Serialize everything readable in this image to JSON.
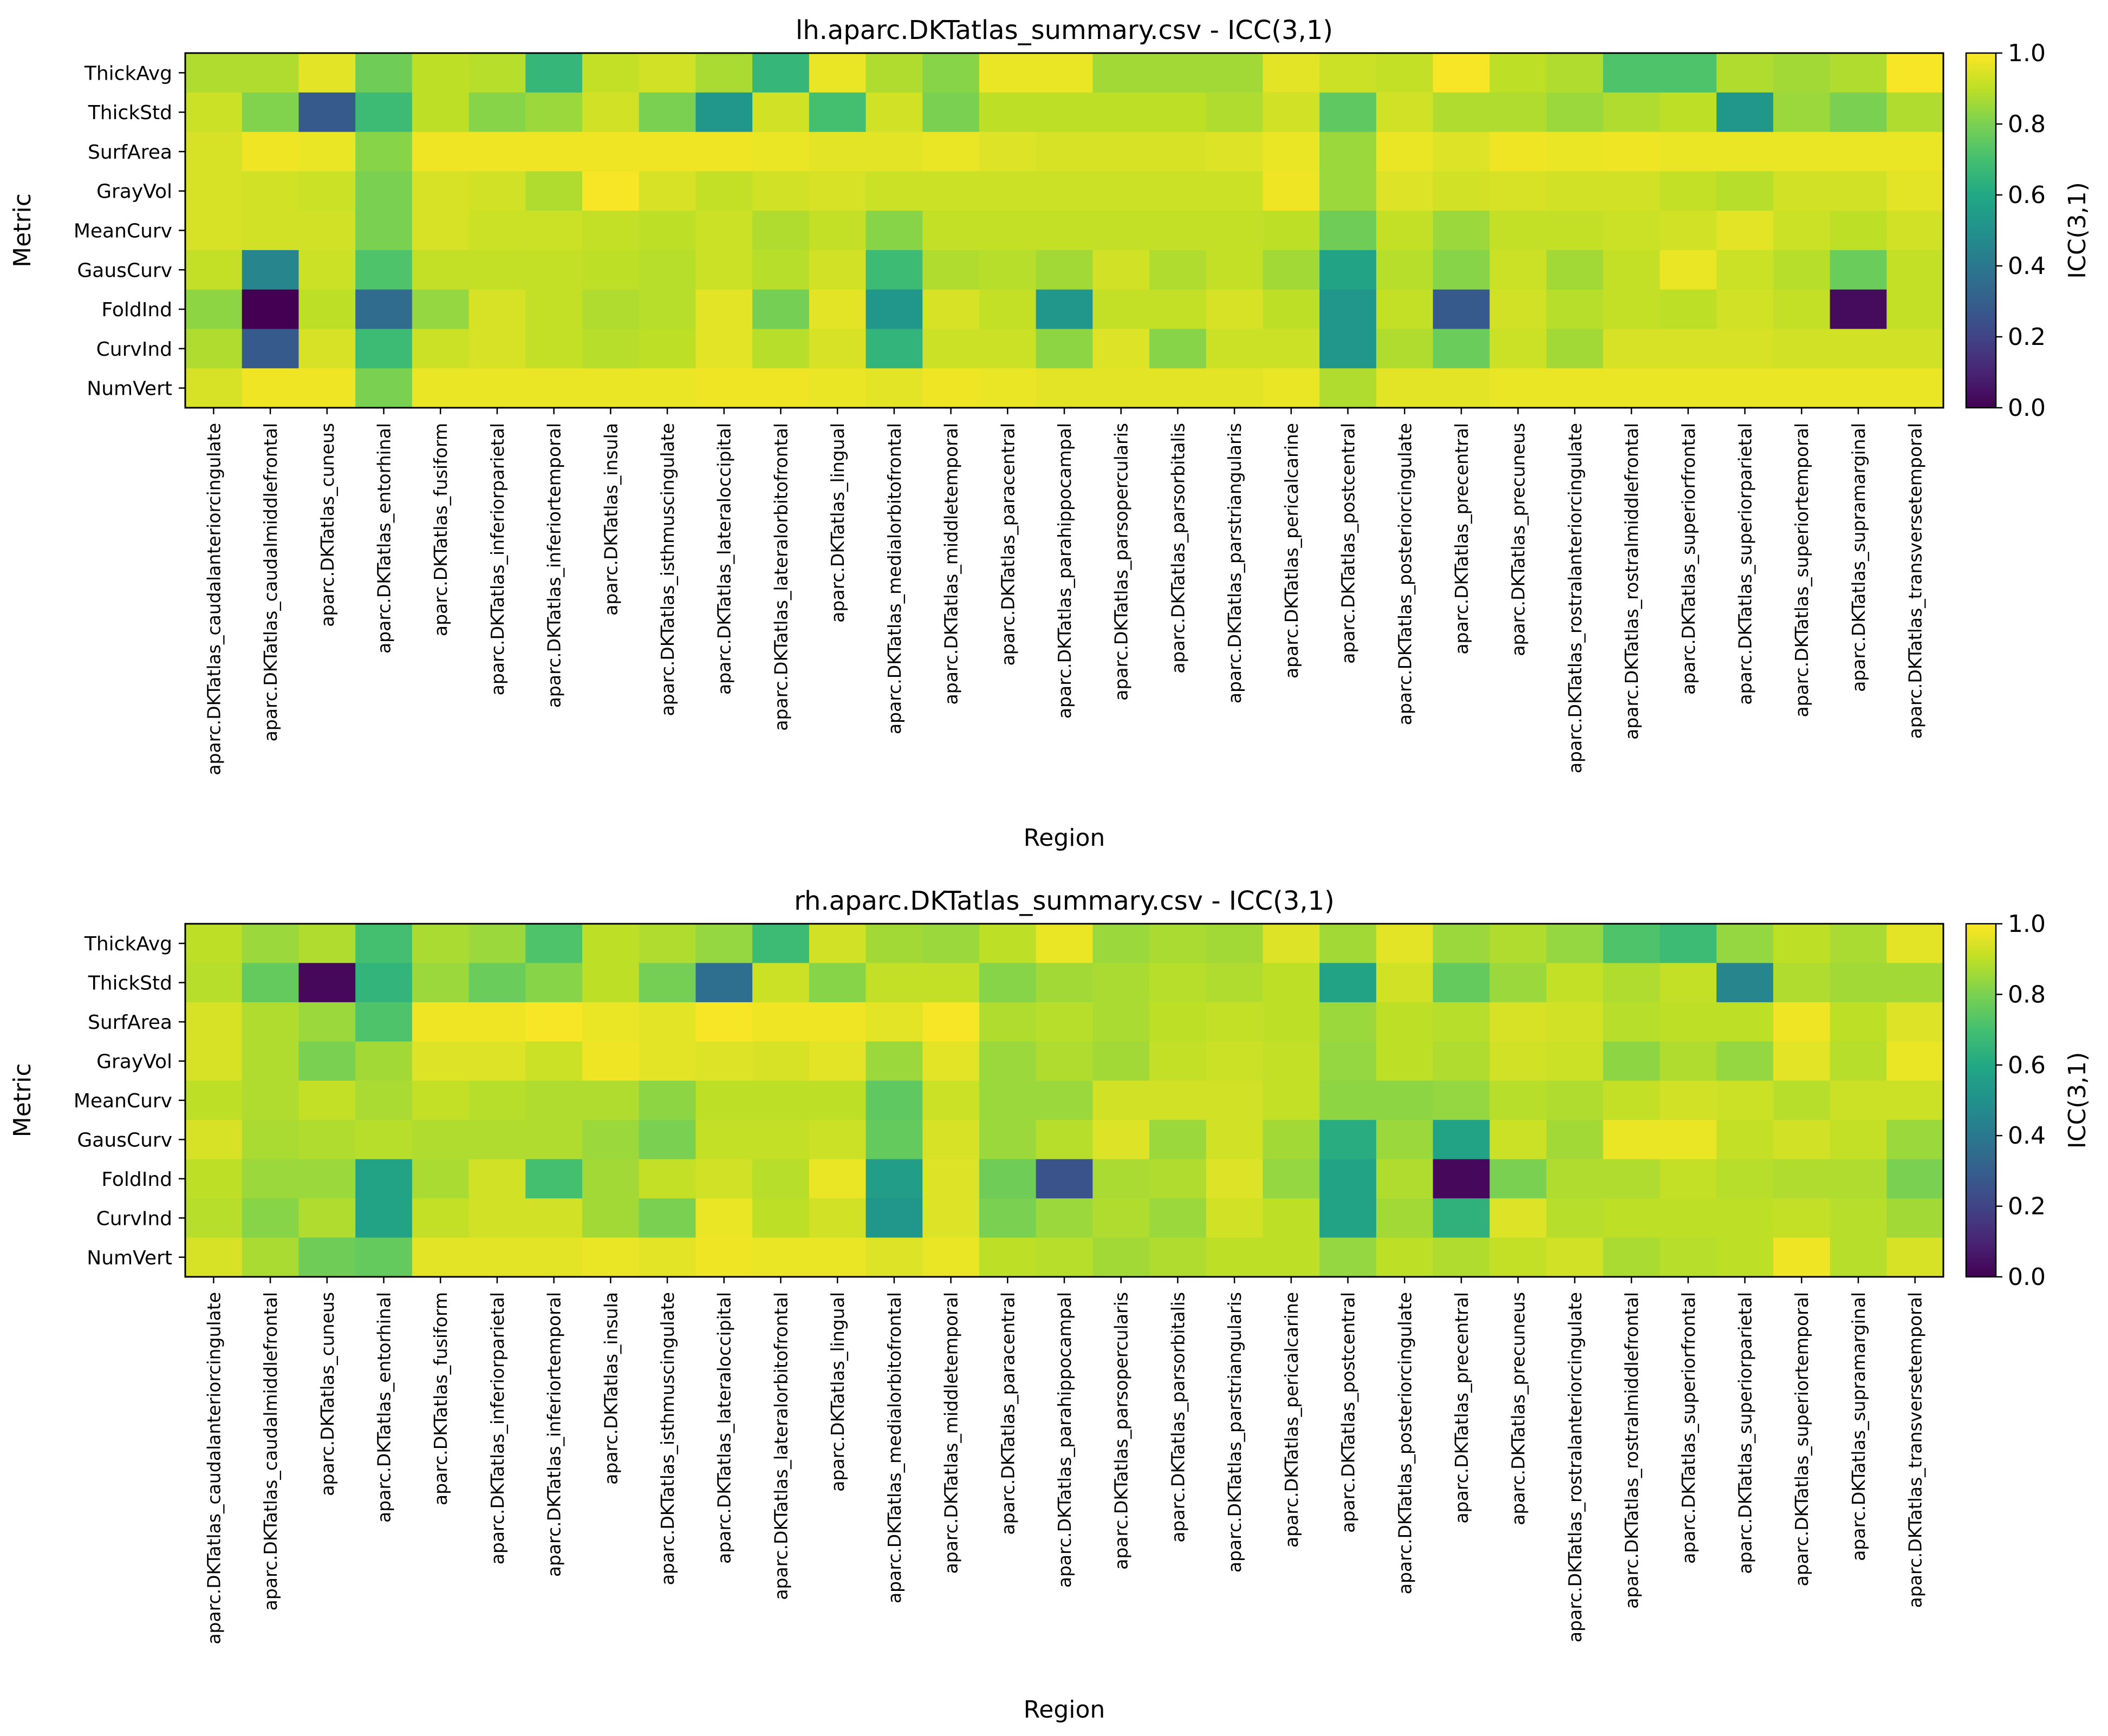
{
  "chart_data": [
    {
      "type": "heatmap",
      "title": "lh.aparc.DKTatlas_summary.csv - ICC(3,1)",
      "xlabel": "Region",
      "ylabel": "Metric",
      "colorbar_label": "ICC(3,1)",
      "colorbar_ticks": [
        "0.0",
        "0.2",
        "0.4",
        "0.6",
        "0.8",
        "1.0"
      ],
      "value_range": [
        0,
        1
      ],
      "colormap": "viridis",
      "metrics": [
        "ThickAvg",
        "ThickStd",
        "SurfArea",
        "GrayVol",
        "MeanCurv",
        "GausCurv",
        "FoldInd",
        "CurvInd",
        "NumVert"
      ],
      "regions": [
        "aparc.DKTatlas_caudalanteriorcingulate",
        "aparc.DKTatlas_caudalmiddlefrontal",
        "aparc.DKTatlas_cuneus",
        "aparc.DKTatlas_entorhinal",
        "aparc.DKTatlas_fusiform",
        "aparc.DKTatlas_inferiorparietal",
        "aparc.DKTatlas_inferiortemporal",
        "aparc.DKTatlas_insula",
        "aparc.DKTatlas_isthmuscingulate",
        "aparc.DKTatlas_lateraloccipital",
        "aparc.DKTatlas_lateralorbitofrontal",
        "aparc.DKTatlas_lingual",
        "aparc.DKTatlas_medialorbitofrontal",
        "aparc.DKTatlas_middletemporal",
        "aparc.DKTatlas_paracentral",
        "aparc.DKTatlas_parahippocampal",
        "aparc.DKTatlas_parsopercularis",
        "aparc.DKTatlas_parsorbitalis",
        "aparc.DKTatlas_parstriangularis",
        "aparc.DKTatlas_pericalcarine",
        "aparc.DKTatlas_postcentral",
        "aparc.DKTatlas_posteriorcingulate",
        "aparc.DKTatlas_precentral",
        "aparc.DKTatlas_precuneus",
        "aparc.DKTatlas_rostralanteriorcingulate",
        "aparc.DKTatlas_rostralmiddlefrontal",
        "aparc.DKTatlas_superiorfrontal",
        "aparc.DKTatlas_superiorparietal",
        "aparc.DKTatlas_superiortemporal",
        "aparc.DKTatlas_supramarginal",
        "aparc.DKTatlas_transversetemporal"
      ],
      "values": [
        [
          0.88,
          0.88,
          0.96,
          0.78,
          0.9,
          0.89,
          0.66,
          0.91,
          0.93,
          0.87,
          0.66,
          0.97,
          0.88,
          0.82,
          0.97,
          0.97,
          0.86,
          0.86,
          0.86,
          0.96,
          0.92,
          0.91,
          0.99,
          0.9,
          0.88,
          0.72,
          0.72,
          0.88,
          0.86,
          0.88,
          0.99
        ],
        [
          0.92,
          0.81,
          0.28,
          0.68,
          0.9,
          0.82,
          0.85,
          0.93,
          0.8,
          0.52,
          0.93,
          0.7,
          0.93,
          0.8,
          0.9,
          0.9,
          0.9,
          0.9,
          0.88,
          0.93,
          0.75,
          0.93,
          0.88,
          0.88,
          0.85,
          0.88,
          0.9,
          0.52,
          0.85,
          0.8,
          0.88
        ],
        [
          0.94,
          0.98,
          0.97,
          0.82,
          0.98,
          0.98,
          0.98,
          0.98,
          0.98,
          0.98,
          0.97,
          0.96,
          0.96,
          0.97,
          0.95,
          0.94,
          0.94,
          0.94,
          0.95,
          0.97,
          0.85,
          0.97,
          0.95,
          0.98,
          0.97,
          0.98,
          0.97,
          0.97,
          0.97,
          0.97,
          0.97
        ],
        [
          0.94,
          0.93,
          0.92,
          0.8,
          0.94,
          0.93,
          0.88,
          0.99,
          0.94,
          0.91,
          0.93,
          0.94,
          0.92,
          0.92,
          0.92,
          0.92,
          0.92,
          0.92,
          0.92,
          0.98,
          0.85,
          0.95,
          0.93,
          0.94,
          0.93,
          0.93,
          0.91,
          0.89,
          0.93,
          0.93,
          0.96
        ],
        [
          0.94,
          0.93,
          0.93,
          0.8,
          0.94,
          0.92,
          0.92,
          0.91,
          0.9,
          0.92,
          0.88,
          0.91,
          0.82,
          0.91,
          0.91,
          0.91,
          0.91,
          0.91,
          0.91,
          0.9,
          0.78,
          0.91,
          0.85,
          0.91,
          0.91,
          0.92,
          0.93,
          0.96,
          0.92,
          0.9,
          0.93
        ],
        [
          0.91,
          0.45,
          0.92,
          0.72,
          0.91,
          0.91,
          0.91,
          0.9,
          0.89,
          0.92,
          0.89,
          0.93,
          0.68,
          0.88,
          0.89,
          0.86,
          0.93,
          0.88,
          0.91,
          0.86,
          0.58,
          0.89,
          0.82,
          0.92,
          0.86,
          0.91,
          0.97,
          0.92,
          0.89,
          0.77,
          0.91
        ],
        [
          0.83,
          0.0,
          0.9,
          0.35,
          0.84,
          0.94,
          0.91,
          0.88,
          0.89,
          0.96,
          0.79,
          0.96,
          0.52,
          0.94,
          0.91,
          0.52,
          0.91,
          0.91,
          0.94,
          0.9,
          0.52,
          0.91,
          0.28,
          0.93,
          0.89,
          0.91,
          0.9,
          0.93,
          0.91,
          0.03,
          0.91
        ],
        [
          0.88,
          0.28,
          0.94,
          0.68,
          0.92,
          0.94,
          0.91,
          0.89,
          0.9,
          0.96,
          0.89,
          0.94,
          0.65,
          0.92,
          0.92,
          0.83,
          0.95,
          0.82,
          0.92,
          0.92,
          0.52,
          0.88,
          0.77,
          0.92,
          0.86,
          0.94,
          0.94,
          0.94,
          0.93,
          0.93,
          0.93
        ],
        [
          0.94,
          0.98,
          0.98,
          0.8,
          0.97,
          0.97,
          0.97,
          0.97,
          0.97,
          0.98,
          0.98,
          0.97,
          0.96,
          0.98,
          0.97,
          0.96,
          0.96,
          0.96,
          0.96,
          0.97,
          0.88,
          0.96,
          0.96,
          0.97,
          0.97,
          0.97,
          0.97,
          0.97,
          0.97,
          0.97,
          0.97
        ]
      ]
    },
    {
      "type": "heatmap",
      "title": "rh.aparc.DKTatlas_summary.csv - ICC(3,1)",
      "xlabel": "Region",
      "ylabel": "Metric",
      "colorbar_label": "ICC(3,1)",
      "colorbar_ticks": [
        "0.0",
        "0.2",
        "0.4",
        "0.6",
        "0.8",
        "1.0"
      ],
      "value_range": [
        0,
        1
      ],
      "colormap": "viridis",
      "metrics": [
        "ThickAvg",
        "ThickStd",
        "SurfArea",
        "GrayVol",
        "MeanCurv",
        "GausCurv",
        "FoldInd",
        "CurvInd",
        "NumVert"
      ],
      "regions": [
        "aparc.DKTatlas_caudalanteriorcingulate",
        "aparc.DKTatlas_caudalmiddlefrontal",
        "aparc.DKTatlas_cuneus",
        "aparc.DKTatlas_entorhinal",
        "aparc.DKTatlas_fusiform",
        "aparc.DKTatlas_inferiorparietal",
        "aparc.DKTatlas_inferiortemporal",
        "aparc.DKTatlas_insula",
        "aparc.DKTatlas_isthmuscingulate",
        "aparc.DKTatlas_lateraloccipital",
        "aparc.DKTatlas_lateralorbitofrontal",
        "aparc.DKTatlas_lingual",
        "aparc.DKTatlas_medialorbitofrontal",
        "aparc.DKTatlas_middletemporal",
        "aparc.DKTatlas_paracentral",
        "aparc.DKTatlas_parahippocampal",
        "aparc.DKTatlas_parsopercularis",
        "aparc.DKTatlas_parsorbitalis",
        "aparc.DKTatlas_parstriangularis",
        "aparc.DKTatlas_pericalcarine",
        "aparc.DKTatlas_postcentral",
        "aparc.DKTatlas_posteriorcingulate",
        "aparc.DKTatlas_precentral",
        "aparc.DKTatlas_precuneus",
        "aparc.DKTatlas_rostralanteriorcingulate",
        "aparc.DKTatlas_rostralmiddlefrontal",
        "aparc.DKTatlas_superiorfrontal",
        "aparc.DKTatlas_superiorparietal",
        "aparc.DKTatlas_superiortemporal",
        "aparc.DKTatlas_supramarginal",
        "aparc.DKTatlas_transversetemporal"
      ],
      "values": [
        [
          0.9,
          0.85,
          0.88,
          0.7,
          0.87,
          0.85,
          0.72,
          0.9,
          0.88,
          0.84,
          0.68,
          0.93,
          0.86,
          0.85,
          0.9,
          0.97,
          0.85,
          0.87,
          0.86,
          0.95,
          0.86,
          0.96,
          0.85,
          0.88,
          0.84,
          0.72,
          0.68,
          0.84,
          0.9,
          0.87,
          0.96
        ],
        [
          0.89,
          0.76,
          0.02,
          0.65,
          0.85,
          0.77,
          0.82,
          0.9,
          0.79,
          0.36,
          0.92,
          0.82,
          0.91,
          0.91,
          0.82,
          0.86,
          0.87,
          0.89,
          0.88,
          0.9,
          0.58,
          0.93,
          0.76,
          0.85,
          0.91,
          0.88,
          0.91,
          0.45,
          0.88,
          0.86,
          0.86
        ],
        [
          0.94,
          0.88,
          0.85,
          0.72,
          0.98,
          0.98,
          0.99,
          0.97,
          0.96,
          0.99,
          0.98,
          0.98,
          0.96,
          0.99,
          0.88,
          0.89,
          0.87,
          0.9,
          0.91,
          0.9,
          0.85,
          0.9,
          0.89,
          0.94,
          0.93,
          0.89,
          0.9,
          0.9,
          0.98,
          0.9,
          0.95
        ],
        [
          0.94,
          0.88,
          0.8,
          0.86,
          0.95,
          0.95,
          0.92,
          0.98,
          0.96,
          0.95,
          0.94,
          0.96,
          0.85,
          0.96,
          0.85,
          0.88,
          0.86,
          0.91,
          0.92,
          0.91,
          0.84,
          0.9,
          0.88,
          0.93,
          0.92,
          0.83,
          0.88,
          0.84,
          0.96,
          0.89,
          0.97
        ],
        [
          0.9,
          0.88,
          0.91,
          0.87,
          0.91,
          0.89,
          0.88,
          0.88,
          0.83,
          0.9,
          0.9,
          0.9,
          0.75,
          0.92,
          0.85,
          0.85,
          0.93,
          0.93,
          0.93,
          0.91,
          0.83,
          0.83,
          0.84,
          0.89,
          0.88,
          0.91,
          0.93,
          0.92,
          0.89,
          0.92,
          0.92
        ],
        [
          0.94,
          0.87,
          0.88,
          0.89,
          0.88,
          0.88,
          0.88,
          0.85,
          0.8,
          0.91,
          0.91,
          0.92,
          0.76,
          0.94,
          0.85,
          0.89,
          0.95,
          0.85,
          0.93,
          0.86,
          0.62,
          0.85,
          0.58,
          0.92,
          0.86,
          0.97,
          0.97,
          0.91,
          0.93,
          0.91,
          0.85
        ],
        [
          0.9,
          0.85,
          0.85,
          0.58,
          0.87,
          0.93,
          0.7,
          0.86,
          0.91,
          0.93,
          0.89,
          0.97,
          0.55,
          0.95,
          0.78,
          0.26,
          0.87,
          0.88,
          0.95,
          0.84,
          0.58,
          0.88,
          0.02,
          0.8,
          0.88,
          0.88,
          0.91,
          0.89,
          0.88,
          0.88,
          0.8
        ],
        [
          0.89,
          0.82,
          0.88,
          0.58,
          0.91,
          0.93,
          0.93,
          0.86,
          0.8,
          0.97,
          0.9,
          0.93,
          0.52,
          0.95,
          0.8,
          0.85,
          0.88,
          0.85,
          0.93,
          0.9,
          0.58,
          0.86,
          0.64,
          0.95,
          0.89,
          0.9,
          0.9,
          0.9,
          0.91,
          0.89,
          0.86
        ],
        [
          0.94,
          0.87,
          0.78,
          0.76,
          0.96,
          0.96,
          0.96,
          0.97,
          0.96,
          0.98,
          0.97,
          0.97,
          0.95,
          0.97,
          0.9,
          0.89,
          0.86,
          0.88,
          0.9,
          0.9,
          0.84,
          0.9,
          0.88,
          0.91,
          0.93,
          0.87,
          0.89,
          0.9,
          0.98,
          0.89,
          0.94
        ]
      ]
    }
  ]
}
